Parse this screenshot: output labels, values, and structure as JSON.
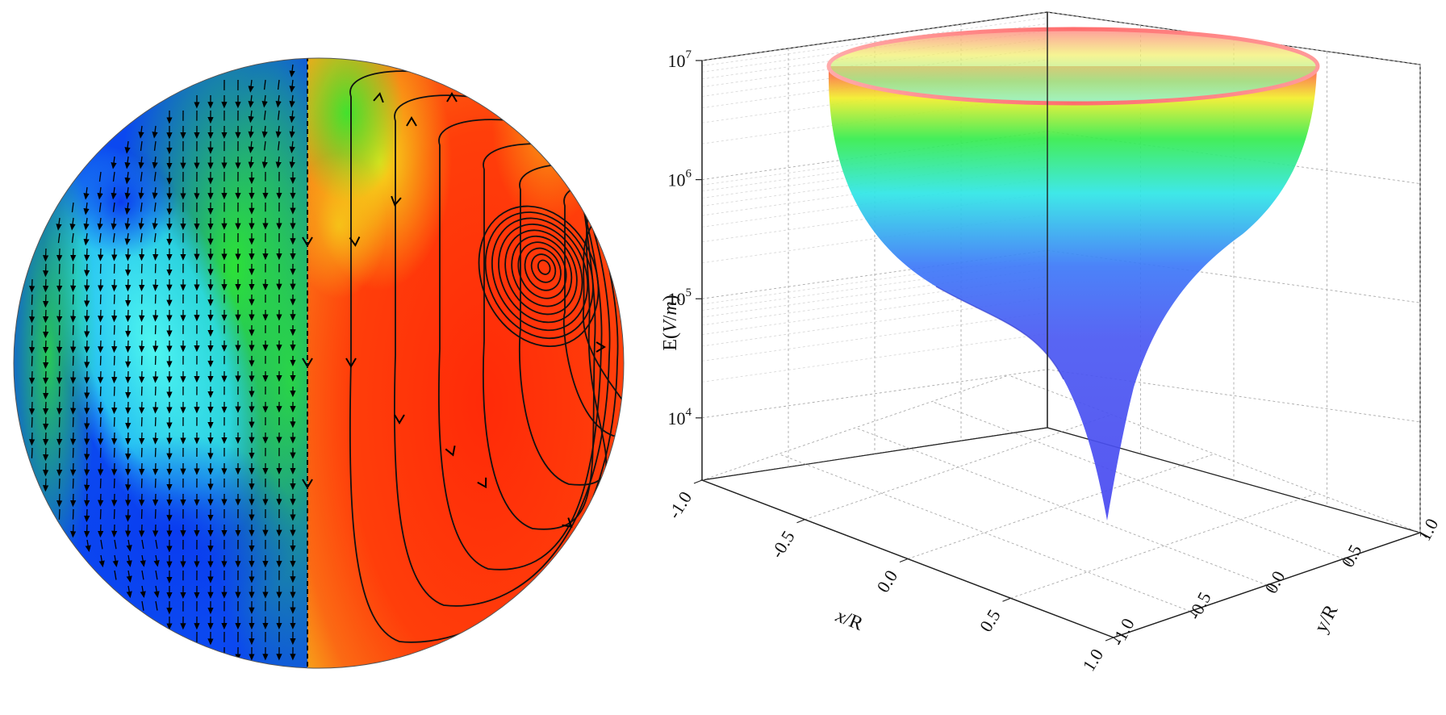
{
  "chart_data": [
    {
      "type": "heatmap",
      "panel": "left",
      "description_shown": "sphere cross-section colored contour map; left half with vector arrows, right half with streamlines and a vortex",
      "colors": {
        "blue": "#0a3cf0",
        "cyan": "#2ef2f0",
        "green": "#2ee830",
        "yellow": "#f4ef1c",
        "orange": "#fb8a18",
        "red": "#ff2a08",
        "arrows": "#000000"
      }
    },
    {
      "type": "surface3d",
      "panel": "right",
      "zlabel": {
        "base": "E(",
        "italic": "V",
        "slash": "/",
        "italic2": "m",
        "close": ")"
      },
      "xlabel": {
        "italic": "x",
        "rest": "/R"
      },
      "ylabel": "y/R",
      "z_scale": "log",
      "z_ticks": [
        {
          "value": 10000,
          "base": "10",
          "exp": "4"
        },
        {
          "value": 100000,
          "base": "10",
          "exp": "5"
        },
        {
          "value": 1000000,
          "base": "10",
          "exp": "6"
        },
        {
          "value": 10000000,
          "base": "10",
          "exp": "7"
        }
      ],
      "x_ticks": [
        "-1.0",
        "-0.5",
        "0.0",
        "0.5",
        "1.0"
      ],
      "y_ticks": [
        "-1.0",
        "-0.5",
        "0.0",
        "0.5",
        "1.0"
      ],
      "xlim": [
        -1.0,
        1.0
      ],
      "ylim": [
        -1.0,
        1.0
      ],
      "zlim": [
        3000,
        10000000
      ],
      "grid": true,
      "colormap": [
        "#ff3a3a",
        "#f2ee2a",
        "#34ec4c",
        "#2ee6e6",
        "#3c60f8",
        "#4a48f0"
      ]
    }
  ]
}
